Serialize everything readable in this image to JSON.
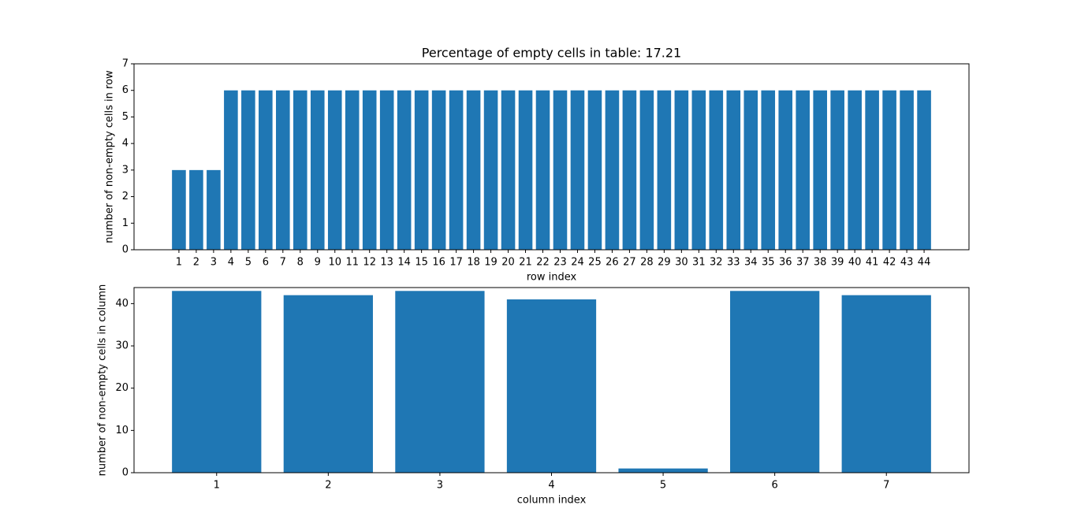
{
  "chart_data": [
    {
      "type": "bar",
      "title": "Percentage of empty cells in table: 17.21",
      "x": [
        1,
        2,
        3,
        4,
        5,
        6,
        7,
        8,
        9,
        10,
        11,
        12,
        13,
        14,
        15,
        16,
        17,
        18,
        19,
        20,
        21,
        22,
        23,
        24,
        25,
        26,
        27,
        28,
        29,
        30,
        31,
        32,
        33,
        34,
        35,
        36,
        37,
        38,
        39,
        40,
        41,
        42,
        43,
        44
      ],
      "values": [
        3,
        3,
        3,
        6,
        6,
        6,
        6,
        6,
        6,
        6,
        6,
        6,
        6,
        6,
        6,
        6,
        6,
        6,
        6,
        6,
        6,
        6,
        6,
        6,
        6,
        6,
        6,
        6,
        6,
        6,
        6,
        6,
        6,
        6,
        6,
        6,
        6,
        6,
        6,
        6,
        6,
        6,
        6,
        6
      ],
      "color": "#1f77b4",
      "xlabel": "row index",
      "ylabel": "number of non-empty cells in row",
      "xlim": [
        -1.59,
        46.59
      ],
      "xticks": [
        1,
        2,
        3,
        4,
        5,
        6,
        7,
        8,
        9,
        10,
        11,
        12,
        13,
        14,
        15,
        16,
        17,
        18,
        19,
        20,
        21,
        22,
        23,
        24,
        25,
        26,
        27,
        28,
        29,
        30,
        31,
        32,
        33,
        34,
        35,
        36,
        37,
        38,
        39,
        40,
        41,
        42,
        43,
        44
      ],
      "ylim": [
        0,
        7
      ],
      "yticks": [
        0,
        1,
        2,
        3,
        4,
        5,
        6,
        7
      ]
    },
    {
      "type": "bar",
      "x": [
        1,
        2,
        3,
        4,
        5,
        6,
        7
      ],
      "values": [
        43,
        42,
        43,
        41,
        1,
        43,
        42
      ],
      "color": "#1f77b4",
      "xlabel": "column index",
      "ylabel": "number of non-empty cells in column",
      "xlim": [
        0.26,
        7.74
      ],
      "xticks": [
        1,
        2,
        3,
        4,
        5,
        6,
        7
      ],
      "ylim": [
        0,
        43.8
      ],
      "yticks": [
        0,
        10,
        20,
        30,
        40
      ]
    }
  ]
}
